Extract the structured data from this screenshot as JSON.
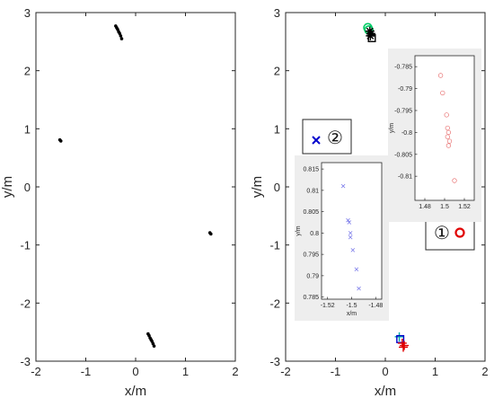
{
  "chart_data": [
    {
      "type": "scatter",
      "xlabel": "x/m",
      "ylabel": "y/m",
      "xlim": [
        -2,
        2
      ],
      "ylim": [
        -3,
        3
      ],
      "xticks": [
        "-2",
        "-1",
        "0",
        "1",
        "2"
      ],
      "yticks": [
        "-3",
        "-2",
        "-1",
        "0",
        "1",
        "2",
        "3"
      ],
      "grid": false,
      "series": [
        {
          "color": "#000000",
          "marker": "dot",
          "points": [
            [
              -0.4,
              2.77
            ],
            [
              -0.38,
              2.74
            ],
            [
              -0.36,
              2.71
            ],
            [
              -0.34,
              2.67
            ],
            [
              -0.32,
              2.64
            ],
            [
              -0.3,
              2.6
            ],
            [
              -0.28,
              2.55
            ],
            [
              -1.52,
              0.81
            ],
            [
              -1.5,
              0.79
            ],
            [
              1.49,
              -0.79
            ],
            [
              1.51,
              -0.81
            ],
            [
              0.25,
              -2.53
            ],
            [
              0.27,
              -2.56
            ],
            [
              0.29,
              -2.6
            ],
            [
              0.31,
              -2.63
            ],
            [
              0.33,
              -2.66
            ],
            [
              0.35,
              -2.7
            ],
            [
              0.37,
              -2.74
            ]
          ]
        }
      ]
    },
    {
      "type": "scatter",
      "xlabel": "x/m",
      "ylabel": "y/m",
      "xlim": [
        -2,
        2
      ],
      "ylim": [
        -3,
        3
      ],
      "xticks": [
        "-2",
        "-1",
        "0",
        "1",
        "2"
      ],
      "yticks": [
        "-3",
        "-2",
        "-1",
        "0",
        "1",
        "2",
        "3"
      ],
      "grid": false,
      "annotations": [
        {
          "text": "②",
          "marker": "x",
          "color": "#0000cc",
          "x": -1.5,
          "y": 0.8
        },
        {
          "text": "①",
          "marker": "circle",
          "color": "#e00000",
          "x": 1.5,
          "y": -0.8
        }
      ],
      "series": [
        {
          "color": "#00cc66",
          "marker": "circle",
          "points": [
            [
              -0.35,
              2.74
            ],
            [
              -0.33,
              2.7
            ]
          ]
        },
        {
          "color": "#000000",
          "marker": "star",
          "points": [
            [
              -0.31,
              2.68
            ],
            [
              -0.29,
              2.64
            ],
            [
              -0.3,
              2.6
            ]
          ]
        },
        {
          "color": "#000000",
          "marker": "square",
          "points": [
            [
              -0.27,
              2.56
            ]
          ]
        },
        {
          "color": "#0000cc",
          "marker": "x",
          "points": [
            [
              -1.5,
              0.8
            ]
          ]
        },
        {
          "color": "#e00000",
          "marker": "circle",
          "points": [
            [
              1.5,
              -0.8
            ]
          ]
        },
        {
          "color": "#00aaaa",
          "marker": "plus",
          "points": [
            [
              0.28,
              -2.58
            ]
          ]
        },
        {
          "color": "#0000cc",
          "marker": "square",
          "points": [
            [
              0.3,
              -2.62
            ]
          ]
        },
        {
          "color": "#e00000",
          "marker": "plus",
          "points": [
            [
              0.34,
              -2.69
            ],
            [
              0.38,
              -2.73
            ],
            [
              0.36,
              -2.76
            ]
          ]
        }
      ]
    }
  ],
  "insets": [
    {
      "name": "inset-red",
      "color": "#e87070",
      "marker": "circle",
      "xlabel": "",
      "ylabel": "y/m",
      "xlim": [
        1.47,
        1.53
      ],
      "ylim": [
        -0.8155,
        -0.7825
      ],
      "xticks": [
        1.48,
        1.5,
        1.52
      ],
      "xtick_labels": [
        "1.48",
        "1.5",
        "1.52"
      ],
      "yticks": [
        -0.785,
        -0.79,
        -0.795,
        -0.8,
        -0.805,
        -0.81
      ],
      "ytick_labels": [
        "-0.785",
        "-0.79",
        "-0.795",
        "-0.8",
        "-0.805",
        "-0.81"
      ],
      "points": [
        [
          1.496,
          -0.787
        ],
        [
          1.498,
          -0.791
        ],
        [
          1.502,
          -0.796
        ],
        [
          1.503,
          -0.799
        ],
        [
          1.504,
          -0.8
        ],
        [
          1.503,
          -0.801
        ],
        [
          1.505,
          -0.802
        ],
        [
          1.504,
          -0.803
        ],
        [
          1.51,
          -0.811
        ]
      ]
    },
    {
      "name": "inset-blue",
      "color": "#7070e8",
      "marker": "x",
      "xlabel": "x/m",
      "ylabel": "y/m",
      "xlim": [
        -1.525,
        -1.475
      ],
      "ylim": [
        0.7845,
        0.8165
      ],
      "xticks": [
        -1.52,
        -1.5,
        -1.48
      ],
      "xtick_labels": [
        "-1.52",
        "-1.5",
        "-1.48"
      ],
      "yticks": [
        0.785,
        0.79,
        0.795,
        0.8,
        0.805,
        0.81,
        0.815
      ],
      "ytick_labels": [
        "0.785",
        "0.79",
        "0.795",
        "0.8",
        "0.805",
        "0.81",
        "0.815"
      ],
      "points": [
        [
          -1.507,
          0.811
        ],
        [
          -1.503,
          0.803
        ],
        [
          -1.502,
          0.8025
        ],
        [
          -1.501,
          0.8
        ],
        [
          -1.501,
          0.799
        ],
        [
          -1.499,
          0.796
        ],
        [
          -1.496,
          0.7915
        ],
        [
          -1.494,
          0.787
        ]
      ]
    }
  ]
}
